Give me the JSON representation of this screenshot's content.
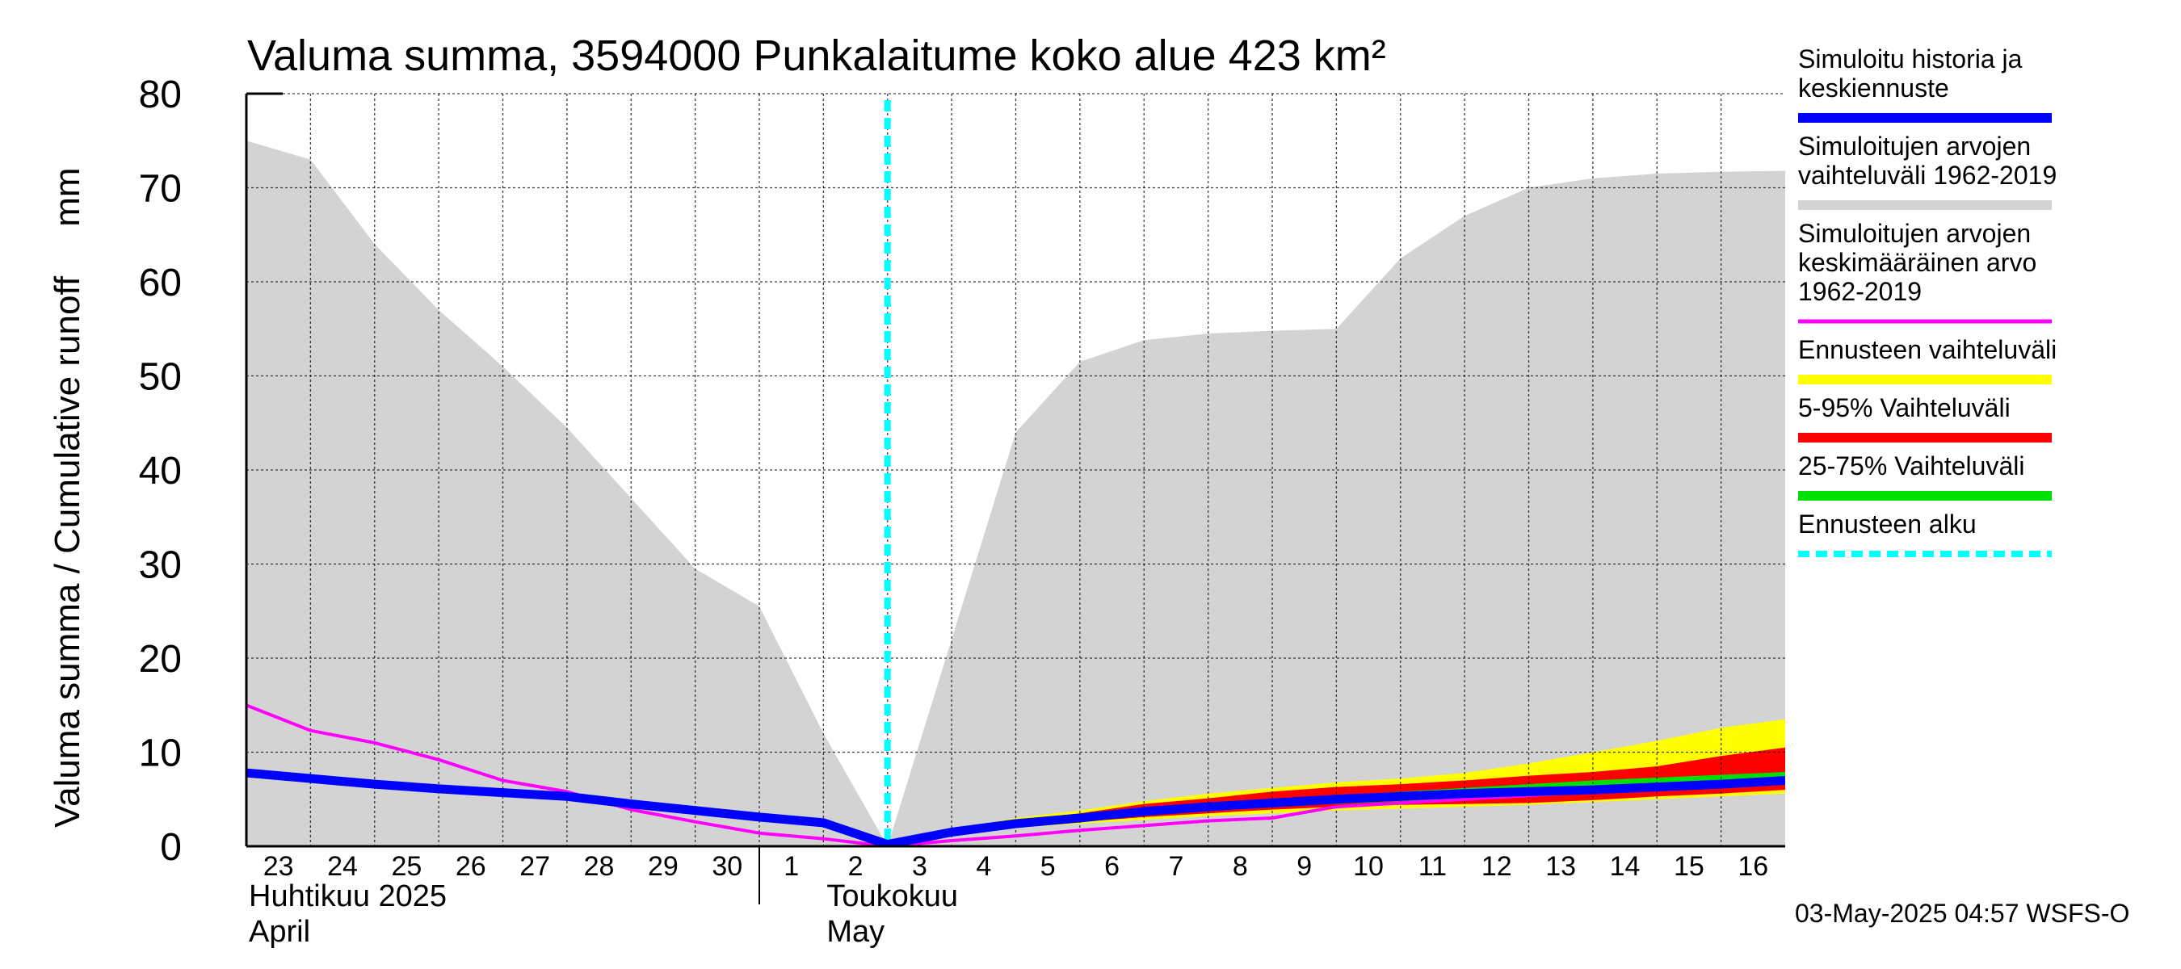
{
  "chart_data": {
    "type": "area",
    "title": "Valuma summa, 3594000 Punkalaitume koko alue 423 km²",
    "ylabel": "Valuma summa / Cumulative runoff     mm",
    "ylim": [
      0,
      80
    ],
    "yticks": [
      0,
      10,
      20,
      30,
      40,
      50,
      60,
      70,
      80
    ],
    "grid": true,
    "legend_position": "right",
    "x_day_labels": [
      "23",
      "24",
      "25",
      "26",
      "27",
      "28",
      "29",
      "30",
      "1",
      "2",
      "3",
      "4",
      "5",
      "6",
      "7",
      "8",
      "9",
      "10",
      "11",
      "12",
      "13",
      "14",
      "15",
      "16"
    ],
    "x_dates": [
      "2025-04-23",
      "2025-04-24",
      "2025-04-25",
      "2025-04-26",
      "2025-04-27",
      "2025-04-28",
      "2025-04-29",
      "2025-04-30",
      "2025-05-01",
      "2025-05-02",
      "2025-05-03",
      "2025-05-04",
      "2025-05-05",
      "2025-05-06",
      "2025-05-07",
      "2025-05-08",
      "2025-05-09",
      "2025-05-10",
      "2025-05-11",
      "2025-05-12",
      "2025-05-13",
      "2025-05-14",
      "2025-05-15",
      "2025-05-16",
      "2025-05-17"
    ],
    "month_labels": [
      {
        "fi": "Huhtikuu  2025",
        "en": "April"
      },
      {
        "fi": "Toukokuu",
        "en": "May"
      }
    ],
    "forecast_start": "2025-05-03",
    "series": [
      {
        "name": "Simuloitujen arvojen vaihteluväli 1962-2019",
        "kind": "band",
        "color": "#d3d3d3",
        "upper": [
          75,
          73,
          64,
          57,
          51,
          44.5,
          37,
          29.5,
          25.5,
          12,
          0,
          22,
          44,
          51.5,
          53.8,
          54.5,
          54.8,
          55,
          62.5,
          67,
          70,
          71,
          71.5,
          71.7,
          71.8
        ],
        "lower": [
          0,
          0,
          0,
          0,
          0,
          0,
          0,
          0,
          0,
          0,
          0,
          0,
          0,
          0,
          0,
          0,
          0,
          0,
          0,
          0,
          0,
          0,
          0,
          0,
          0
        ]
      },
      {
        "name": "Ennusteen vaihteluväli",
        "kind": "band",
        "color": "#ffff00",
        "upper": [
          null,
          null,
          null,
          null,
          null,
          null,
          null,
          null,
          null,
          null,
          0.2,
          1.8,
          3.0,
          3.8,
          4.8,
          5.6,
          6.2,
          6.8,
          7.2,
          7.8,
          8.8,
          10.0,
          11.2,
          12.6,
          13.5
        ],
        "lower": [
          null,
          null,
          null,
          null,
          null,
          null,
          null,
          null,
          null,
          null,
          0.2,
          1.2,
          2.0,
          2.4,
          2.8,
          3.2,
          3.5,
          3.8,
          4.0,
          4.2,
          4.4,
          4.7,
          5.0,
          5.3,
          5.6
        ]
      },
      {
        "name": "5-95% Vaihteluväli",
        "kind": "band",
        "color": "#ff0000",
        "upper": [
          null,
          null,
          null,
          null,
          null,
          null,
          null,
          null,
          null,
          null,
          0.2,
          1.7,
          2.7,
          3.5,
          4.5,
          5.1,
          5.8,
          6.3,
          6.6,
          7.0,
          7.5,
          7.9,
          8.5,
          9.6,
          10.5
        ],
        "lower": [
          null,
          null,
          null,
          null,
          null,
          null,
          null,
          null,
          null,
          null,
          0.2,
          1.3,
          2.2,
          2.6,
          3.1,
          3.5,
          3.9,
          4.2,
          4.4,
          4.5,
          4.6,
          4.9,
          5.3,
          5.6,
          6.0
        ]
      },
      {
        "name": "25-75% Vaihteluväli",
        "kind": "band",
        "color": "#00e000",
        "upper": [
          null,
          null,
          null,
          null,
          null,
          null,
          null,
          null,
          null,
          null,
          0.2,
          1.6,
          2.5,
          3.3,
          4.0,
          4.5,
          5.0,
          5.4,
          5.8,
          6.2,
          6.6,
          7.0,
          7.3,
          7.6,
          7.9
        ],
        "lower": [
          null,
          null,
          null,
          null,
          null,
          null,
          null,
          null,
          null,
          null,
          0.2,
          1.4,
          2.3,
          2.8,
          3.4,
          3.8,
          4.2,
          4.5,
          4.8,
          5.1,
          5.4,
          5.8,
          6.1,
          6.4,
          6.7
        ]
      },
      {
        "name": "Simuloitujen arvojen keskimääräinen arvo 1962-2019",
        "kind": "line",
        "color": "#ff00ff",
        "values": [
          15,
          12.3,
          11,
          9.2,
          7,
          5.8,
          3.9,
          2.6,
          1.4,
          0.8,
          0,
          0.6,
          1.1,
          1.7,
          2.2,
          2.7,
          3.0,
          4.2,
          4.6,
          5.0,
          5.4,
          5.8,
          6.1,
          6.4,
          6.8
        ]
      },
      {
        "name": "Simuloitu historia ja keskiennuste",
        "kind": "line",
        "color": "#0000ff",
        "values": [
          7.8,
          7.2,
          6.6,
          6.1,
          5.7,
          5.3,
          4.5,
          3.8,
          3.1,
          2.5,
          0.2,
          1.5,
          2.4,
          3.0,
          3.7,
          4.2,
          4.6,
          5.0,
          5.3,
          5.6,
          5.8,
          6.0,
          6.3,
          6.6,
          7.0
        ]
      }
    ]
  },
  "legend": [
    {
      "lines": [
        "Simuloitu historia ja",
        "keskiennuste"
      ],
      "color": "#0000ff",
      "style": "solid"
    },
    {
      "lines": [
        "Simuloitujen arvojen",
        "vaihteluväli 1962-2019"
      ],
      "color": "#d3d3d3",
      "style": "solid"
    },
    {
      "lines": [
        "Simuloitujen arvojen",
        "keskimääräinen arvo",
        "   1962-2019"
      ],
      "color": "#ff00ff",
      "style": "thin"
    },
    {
      "lines": [
        "Ennusteen vaihteluväli"
      ],
      "color": "#ffff00",
      "style": "solid"
    },
    {
      "lines": [
        "5-95% Vaihteluväli"
      ],
      "color": "#ff0000",
      "style": "solid"
    },
    {
      "lines": [
        "25-75% Vaihteluväli"
      ],
      "color": "#00e000",
      "style": "solid"
    },
    {
      "lines": [
        "Ennusteen alku"
      ],
      "color": "#00ffff",
      "style": "dashed"
    }
  ],
  "timestamp": "03-May-2025 04:57 WSFS-O"
}
